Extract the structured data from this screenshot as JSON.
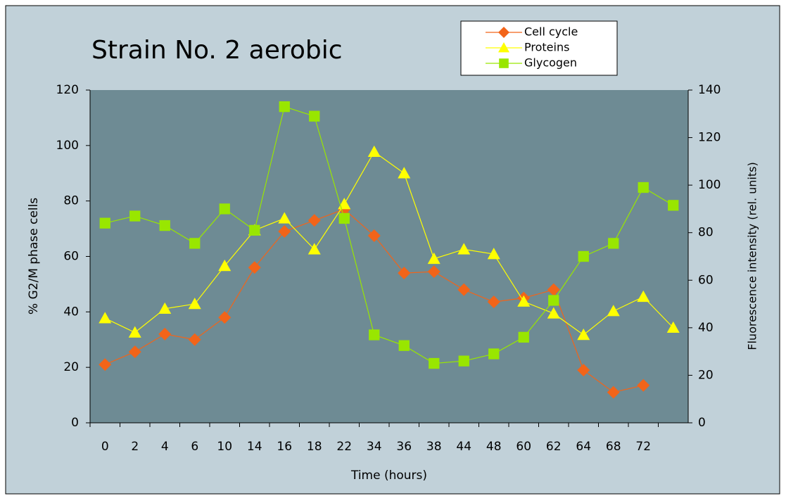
{
  "chart_data": {
    "type": "line",
    "title": "Strain No. 2 aerobic",
    "x_label": "Time (hours)",
    "y_label": "% G2/M phase cells",
    "y2_label": "Fluorescence intensity (rel. units)",
    "categories": [
      "0",
      "2",
      "4",
      "6",
      "10",
      "14",
      "16",
      "18",
      "22",
      "34",
      "36",
      "38",
      "44",
      "48",
      "60",
      "62",
      "64",
      "68",
      "72",
      null
    ],
    "ylim": [
      0,
      120
    ],
    "yticks": [
      0,
      20,
      40,
      60,
      80,
      100,
      120
    ],
    "y2lim": [
      0,
      140
    ],
    "y2ticks": [
      0,
      20,
      40,
      60,
      80,
      100,
      120,
      140
    ],
    "series": [
      {
        "name": "Cell cycle",
        "color": "#f26419",
        "marker": "diamond",
        "values": [
          21,
          25.6,
          32,
          30,
          38,
          56,
          69,
          73,
          77,
          67.5,
          54,
          54.5,
          48,
          43.6,
          45,
          48,
          19,
          11,
          13.5,
          null
        ]
      },
      {
        "name": "Proteins",
        "color": "#ffff00",
        "marker": "triangle",
        "axis": "y2",
        "values": [
          44,
          38,
          48,
          50,
          66,
          81,
          86,
          73,
          92,
          114,
          105,
          69,
          73,
          71,
          51,
          46,
          37,
          47,
          53,
          40
        ]
      },
      {
        "name": "Glycogen",
        "color": "#99e600",
        "marker": "square",
        "axis": "y2",
        "values": [
          84,
          87,
          83,
          75.5,
          90,
          81,
          133,
          129,
          86,
          37,
          32.5,
          25,
          26,
          29,
          36,
          51.5,
          70,
          75.5,
          99,
          91.5
        ]
      }
    ]
  }
}
